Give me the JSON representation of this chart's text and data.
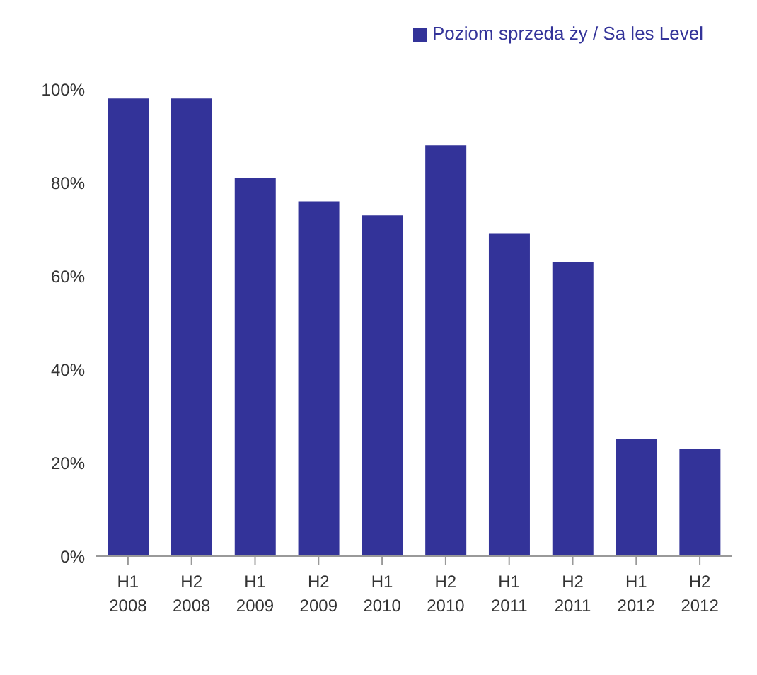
{
  "chart_data": {
    "type": "bar",
    "categories": [
      "H1\n2008",
      "H2\n2008",
      "H1\n2009",
      "H2\n2009",
      "H1\n2010",
      "H2\n2010",
      "H1\n2011",
      "H2\n2011",
      "H1\n2012",
      "H2\n2012"
    ],
    "series": [
      {
        "name": "Poziom sprzeda ży / Sa les Level",
        "color": "#333399",
        "values": [
          98,
          98,
          81,
          76,
          73,
          88,
          69,
          63,
          25,
          23
        ]
      }
    ],
    "ylim": [
      0,
      100
    ],
    "yticks": [
      {
        "value": 0,
        "label": "0%"
      },
      {
        "value": 20,
        "label": "20%"
      },
      {
        "value": 40,
        "label": "40%"
      },
      {
        "value": 60,
        "label": "60%"
      },
      {
        "value": 80,
        "label": "80%"
      },
      {
        "value": 100,
        "label": "100%"
      }
    ],
    "grid": false,
    "legend": "top right"
  }
}
